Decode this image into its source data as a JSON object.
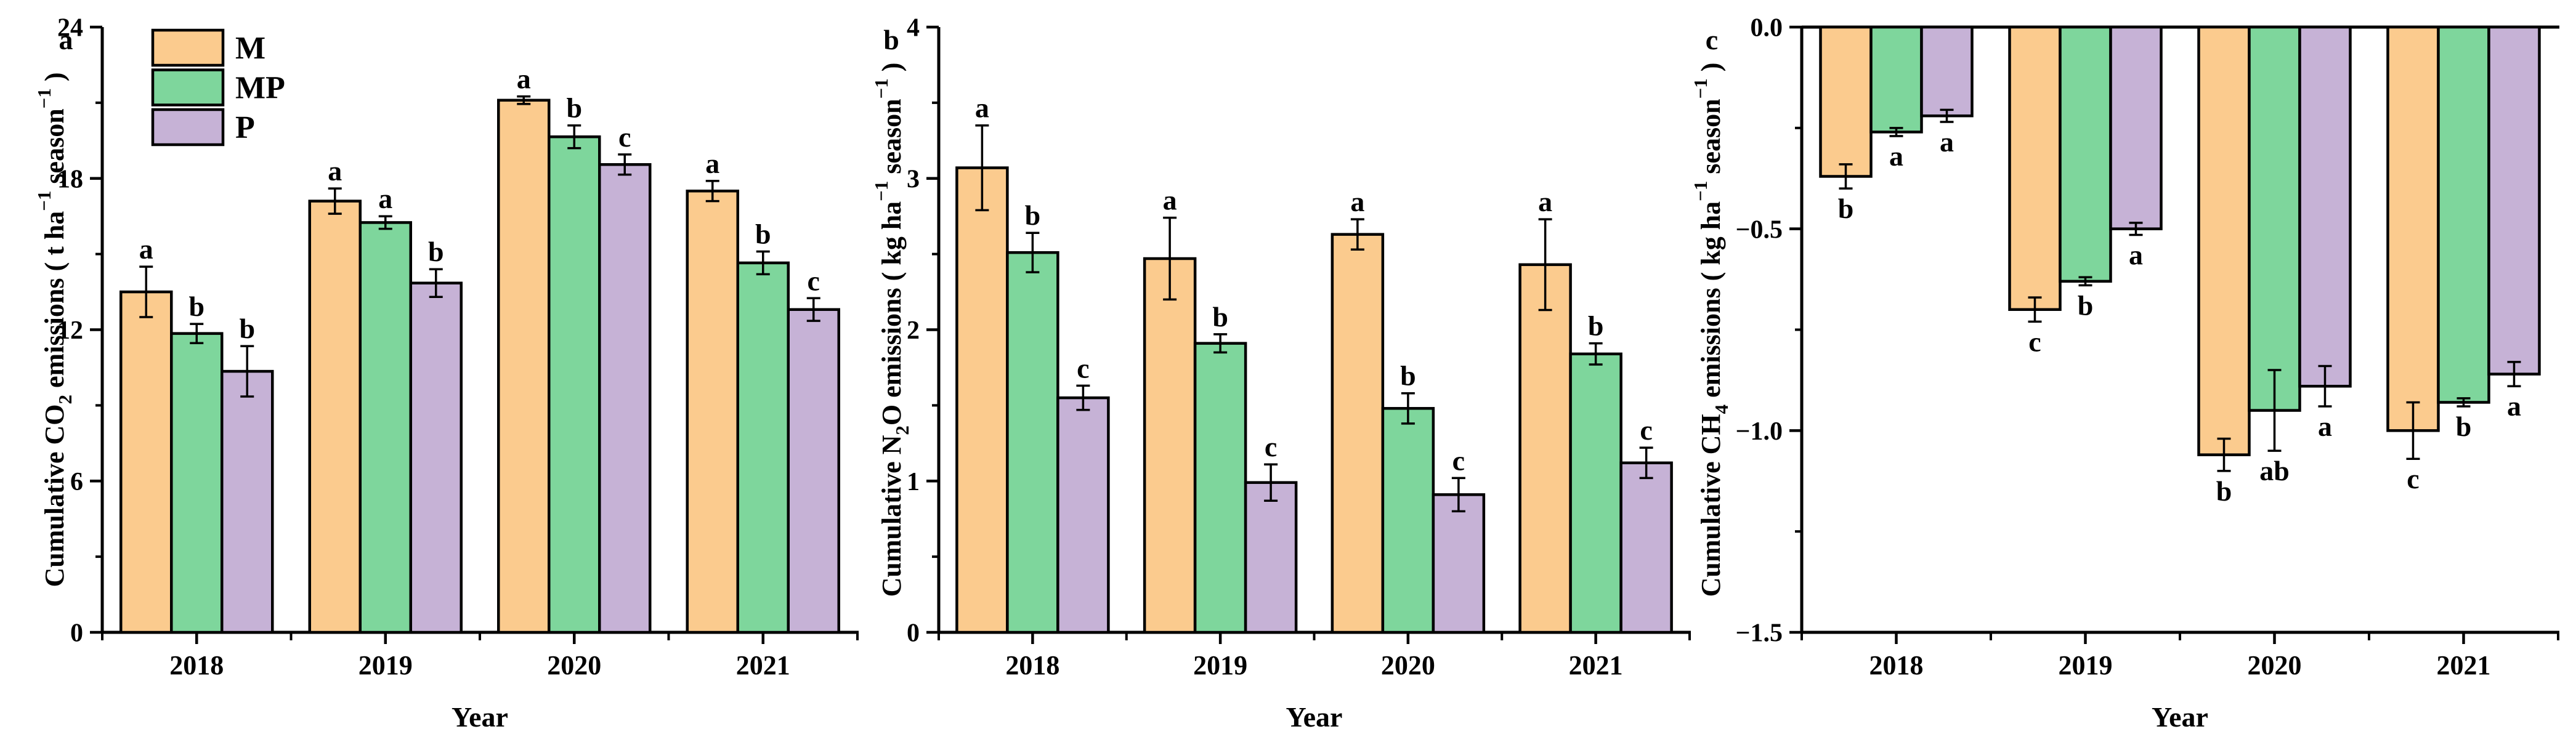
{
  "figure": {
    "background": "#ffffff",
    "x_axis_title": "Year",
    "years": [
      "2018",
      "2019",
      "2020",
      "2021"
    ],
    "edge_color": "#000000",
    "legend": {
      "position": "top-left-of-panel-a",
      "items": [
        {
          "label": "M",
          "color": "#FBCB8E"
        },
        {
          "label": "MP",
          "color": "#7ED69C"
        },
        {
          "label": "P",
          "color": "#C6B2D6"
        }
      ]
    }
  },
  "chart_data": [
    {
      "type": "bar",
      "panel_letter": "a",
      "ylabel_text": "Cumulative CO2 emissions ( t ha−1 season−1 )",
      "ylabel_parts": [
        {
          "t": "Cumulative CO"
        },
        {
          "t": "2",
          "s": "sub"
        },
        {
          "t": " emissions ( t ha"
        },
        {
          "t": "−1",
          "s": "sup"
        },
        {
          "t": " season"
        },
        {
          "t": "−1",
          "s": "sup"
        },
        {
          "t": " )"
        }
      ],
      "xlabel": "Year",
      "categories": [
        "2018",
        "2019",
        "2020",
        "2021"
      ],
      "ylim": [
        0,
        24
      ],
      "grid": false,
      "yticks": [
        {
          "v": 0,
          "label": "0"
        },
        {
          "v": 6,
          "label": "6"
        },
        {
          "v": 12,
          "label": "12"
        },
        {
          "v": 18,
          "label": "18"
        },
        {
          "v": 24,
          "label": "24"
        }
      ],
      "yminor": [
        3,
        9,
        15,
        21
      ],
      "has_legend": true,
      "series": [
        {
          "name": "M",
          "color": "#FBCB8E",
          "values": [
            13.5,
            17.1,
            21.1,
            17.5
          ],
          "errors": [
            1.0,
            0.5,
            0.15,
            0.4
          ],
          "letters": [
            "a",
            "a",
            "a",
            "a"
          ]
        },
        {
          "name": "MP",
          "color": "#7ED69C",
          "values": [
            11.85,
            16.25,
            19.65,
            14.65
          ],
          "errors": [
            0.38,
            0.25,
            0.45,
            0.45
          ],
          "letters": [
            "b",
            "a",
            "b",
            "b"
          ]
        },
        {
          "name": "P",
          "color": "#C6B2D6",
          "values": [
            10.35,
            13.85,
            18.55,
            12.8
          ],
          "errors": [
            1.0,
            0.55,
            0.4,
            0.45
          ],
          "letters": [
            "b",
            "b",
            "c",
            "c"
          ]
        }
      ]
    },
    {
      "type": "bar",
      "panel_letter": "b",
      "ylabel_text": "Cumulative N2O emissions ( kg ha−1 season−1 )",
      "ylabel_parts": [
        {
          "t": "Cumulative N"
        },
        {
          "t": "2",
          "s": "sub"
        },
        {
          "t": "O emissions ( kg ha"
        },
        {
          "t": "−1",
          "s": "sup"
        },
        {
          "t": " season"
        },
        {
          "t": "−1",
          "s": "sup"
        },
        {
          "t": " )"
        }
      ],
      "xlabel": "Year",
      "categories": [
        "2018",
        "2019",
        "2020",
        "2021"
      ],
      "ylim": [
        0,
        4
      ],
      "grid": false,
      "yticks": [
        {
          "v": 0,
          "label": "0"
        },
        {
          "v": 1,
          "label": "1"
        },
        {
          "v": 2,
          "label": "2"
        },
        {
          "v": 3,
          "label": "3"
        },
        {
          "v": 4,
          "label": "4"
        }
      ],
      "yminor": [
        0.5,
        1.5,
        2.5,
        3.5
      ],
      "has_legend": false,
      "series": [
        {
          "name": "M",
          "color": "#FBCB8E",
          "values": [
            3.07,
            2.47,
            2.63,
            2.43
          ],
          "errors": [
            0.28,
            0.27,
            0.1,
            0.3
          ],
          "letters": [
            "a",
            "a",
            "a",
            "a"
          ]
        },
        {
          "name": "MP",
          "color": "#7ED69C",
          "values": [
            2.51,
            1.91,
            1.48,
            1.84
          ],
          "errors": [
            0.13,
            0.06,
            0.1,
            0.07
          ],
          "letters": [
            "b",
            "b",
            "b",
            "b"
          ]
        },
        {
          "name": "P",
          "color": "#C6B2D6",
          "values": [
            1.55,
            0.99,
            0.91,
            1.12
          ],
          "errors": [
            0.08,
            0.12,
            0.11,
            0.1
          ],
          "letters": [
            "c",
            "c",
            "c",
            "c"
          ]
        }
      ]
    },
    {
      "type": "bar",
      "panel_letter": "c",
      "ylabel_text": "Cumulative CH4 emissions ( kg ha−1 season−1 )",
      "ylabel_parts": [
        {
          "t": "Cumulative CH"
        },
        {
          "t": "4",
          "s": "sub"
        },
        {
          "t": " emissions ( kg ha"
        },
        {
          "t": "−1",
          "s": "sup"
        },
        {
          "t": " season"
        },
        {
          "t": "−1",
          "s": "sup"
        },
        {
          "t": " )"
        }
      ],
      "xlabel": "Year",
      "categories": [
        "2018",
        "2019",
        "2020",
        "2021"
      ],
      "ylim": [
        -1.5,
        0
      ],
      "grid": false,
      "zero_line_on_top": true,
      "yticks": [
        {
          "v": 0,
          "label": "0.0"
        },
        {
          "v": -0.5,
          "label": "−0.5"
        },
        {
          "v": -1.0,
          "label": "−1.0"
        },
        {
          "v": -1.5,
          "label": "−1.5"
        }
      ],
      "yminor": [
        -0.25,
        -0.75,
        -1.25
      ],
      "has_legend": false,
      "series": [
        {
          "name": "M",
          "color": "#FBCB8E",
          "values": [
            -0.37,
            -0.7,
            -1.06,
            -1.0
          ],
          "errors": [
            0.03,
            0.03,
            0.04,
            0.07
          ],
          "letters": [
            "b",
            "c",
            "b",
            "c"
          ]
        },
        {
          "name": "MP",
          "color": "#7ED69C",
          "values": [
            -0.26,
            -0.63,
            -0.95,
            -0.93
          ],
          "errors": [
            0.01,
            0.01,
            0.1,
            0.01
          ],
          "letters": [
            "a",
            "b",
            "ab",
            "b"
          ]
        },
        {
          "name": "P",
          "color": "#C6B2D6",
          "values": [
            -0.22,
            -0.5,
            -0.89,
            -0.86
          ],
          "errors": [
            0.015,
            0.015,
            0.05,
            0.03
          ],
          "letters": [
            "a",
            "a",
            "a",
            "a"
          ]
        }
      ]
    }
  ]
}
